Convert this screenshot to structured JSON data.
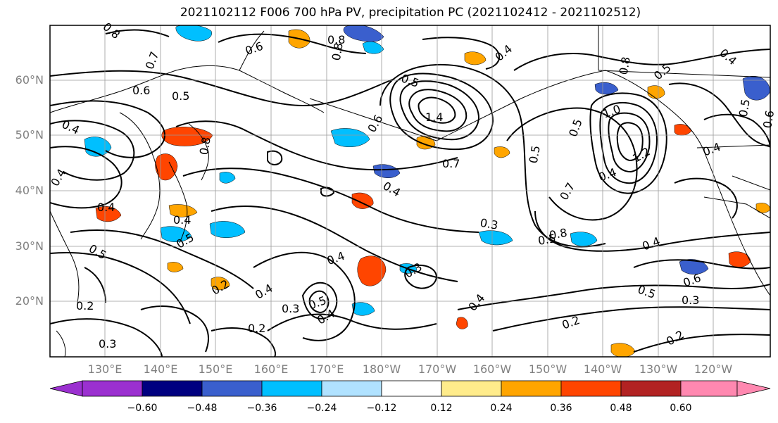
{
  "title": "2021102112 F006 700 hPa PV, precipitation PC (2021102412 - 2021102512)",
  "lat_labels": [
    "60°N",
    "50°N",
    "40°N",
    "30°N",
    "20°N"
  ],
  "lon_labels": [
    "130°E",
    "140°E",
    "150°E",
    "160°E",
    "170°E",
    "180°W",
    "170°W",
    "160°W",
    "150°W",
    "140°W",
    "130°W",
    "120°W"
  ],
  "colorbar": {
    "ticks": [
      "−0.60",
      "−0.48",
      "−0.36",
      "−0.24",
      "−0.12",
      "0.12",
      "0.24",
      "0.36",
      "0.48",
      "0.60"
    ],
    "colors": [
      "#9b30d0",
      "#000080",
      "#3a5fcd",
      "#00bfff",
      "#b0e2ff",
      "#ffffff",
      "#ffec8b",
      "#ffa500",
      "#ff4500",
      "#b22222",
      "#ff88b0"
    ]
  },
  "contour_labels": [
    "0.8",
    "0.6",
    "0.8",
    "0.7",
    "0.4",
    "0.6",
    "0.5",
    "0.4",
    "0.4",
    "0.4",
    "0.5",
    "0.2",
    "0.3",
    "0.4",
    "0.5",
    "0.2",
    "0.8",
    "0.6",
    "0.5",
    "1.4",
    "0.7",
    "0.4",
    "0.3",
    "0.4",
    "0.3",
    "0.5",
    "0.4",
    "0.3",
    "0.2",
    "0.4",
    "0.4",
    "0.5",
    "0.5",
    "1.0",
    "0.8",
    "1.2",
    "0.4",
    "0.7",
    "0.5",
    "0.8",
    "0.5",
    "0.4",
    "0.6",
    "0.5",
    "0.3",
    "0.2",
    "0.2",
    "0.5",
    "0.4",
    "0.6",
    "0.4",
    "0.8"
  ]
}
